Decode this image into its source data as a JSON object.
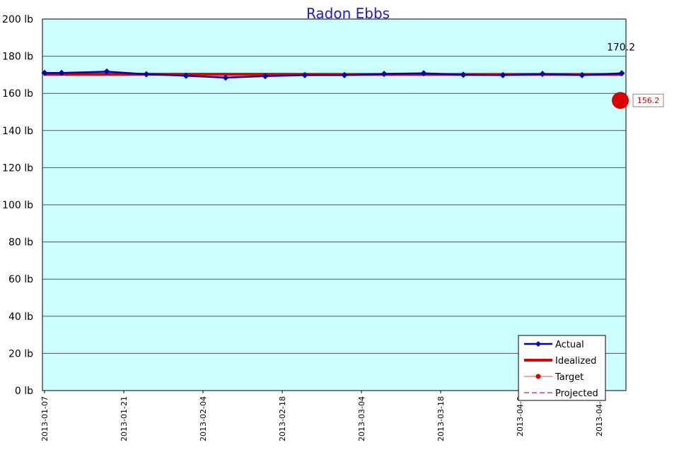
{
  "chart_data": {
    "type": "line",
    "title": "Radon Ebbs",
    "y_unit": "lb",
    "ylim": [
      0,
      200
    ],
    "y_ticks": [
      "0 lb",
      "20 lb",
      "40 lb",
      "60 lb",
      "80 lb",
      "100 lb",
      "120 lb",
      "140 lb",
      "160 lb",
      "180 lb",
      "200 lb"
    ],
    "x_ticks": [
      "2013-01-07",
      "2013-01-21",
      "2013-02-04",
      "2013-02-18",
      "2013-03-04",
      "2013-03-18",
      "2013-04-0",
      "2013-04-1"
    ],
    "grid": "horizontal",
    "plot_background": "#ccffff",
    "legend_position": "bottom-right",
    "series": [
      {
        "name": "Actual",
        "color": "#0000aa",
        "marker": "diamond",
        "points": [
          {
            "x": "2013-01-07",
            "y": 171.0
          },
          {
            "x": "2013-01-10",
            "y": 171.0
          },
          {
            "x": "2013-01-18",
            "y": 171.7
          },
          {
            "x": "2013-01-25",
            "y": 170.3
          },
          {
            "x": "2013-02-01",
            "y": 169.5
          },
          {
            "x": "2013-02-08",
            "y": 168.5
          },
          {
            "x": "2013-02-15",
            "y": 169.3
          },
          {
            "x": "2013-02-22",
            "y": 169.8
          },
          {
            "x": "2013-03-01",
            "y": 169.8
          },
          {
            "x": "2013-03-08",
            "y": 170.5
          },
          {
            "x": "2013-03-15",
            "y": 170.8
          },
          {
            "x": "2013-03-22",
            "y": 170.0
          },
          {
            "x": "2013-03-29",
            "y": 169.8
          },
          {
            "x": "2013-04-05",
            "y": 170.5
          },
          {
            "x": "2013-04-12",
            "y": 169.8
          },
          {
            "x": "2013-04-19",
            "y": 170.8
          }
        ]
      },
      {
        "name": "Idealized",
        "color": "#dd0000",
        "points": [
          {
            "x": "2013-01-07",
            "y": 170.3
          },
          {
            "x": "2013-02-08",
            "y": 170.3
          },
          {
            "x": "2013-03-08",
            "y": 170.2
          },
          {
            "x": "2013-04-19",
            "y": 170.2
          }
        ]
      },
      {
        "name": "Target",
        "color": "#ff8080",
        "marker_color": "#dd0000",
        "points": [
          {
            "x": "2013-04-19",
            "y": 156.2
          }
        ]
      },
      {
        "name": "Projected",
        "color": "#dd3399",
        "dashed": true,
        "points": []
      }
    ],
    "annotations": {
      "idealized_end_label": "170.2",
      "target_label": "156.2"
    }
  }
}
